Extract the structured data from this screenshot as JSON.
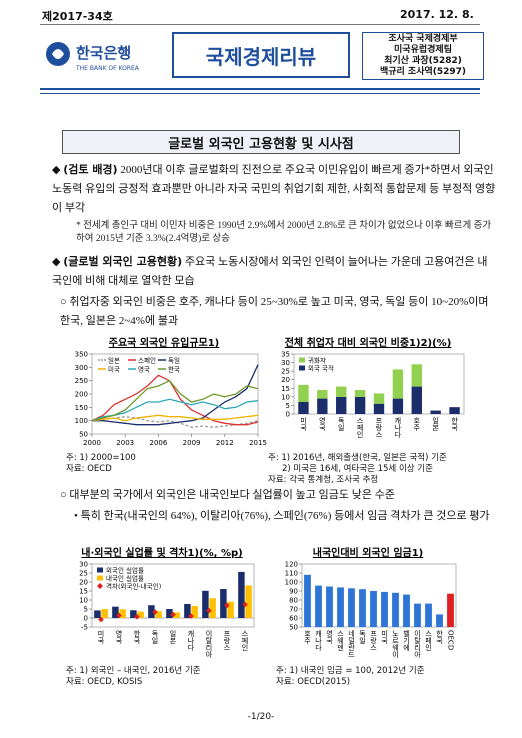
{
  "header": {
    "issue": "제2017-34호",
    "date": "2017. 12. 8.",
    "logo_name": "한국은행",
    "logo_en": "THE BANK OF KOREA",
    "series_title": "국제경제리뷰",
    "authors": [
      "조사국 국제경제부",
      "미국유럽경제팀",
      "최기산 과장(5282)",
      "백규리 조사역(5297)"
    ]
  },
  "title": "글로벌 외국인 고용현황 및 시사점",
  "body": [
    {
      "marker": "◆",
      "lead": "(검토 배경)",
      "text": "2000년대 이후 글로벌화의 진전으로 주요국 이민유입이 빠르게 증가*하면서 외국인 노동력 유입의 긍정적 효과뿐만 아니라 자국 국민의 취업기회 제한, 사회적 통합문제 등 부정적 영향이 부각"
    },
    {
      "marker": "*",
      "text": "전세계 총인구 대비 이민자 비중은 1990년 2.9%에서 2000년 2.8%로 큰 차이가 없었으나 이후 빠르게 증가하여 2015년 기준 3.3%(2.4억명)로 상승"
    },
    {
      "marker": "◆",
      "lead": "(글로벌 외국인 고용현황)",
      "text": "주요국 노동시장에서 외국인 인력이 늘어나는 가운데 고용여건은 내국인에 비해 대체로 열악한 모습"
    },
    {
      "marker": "○",
      "text": "취업자중 외국인 비중은 호주, 캐나다 등이 25~30%로 높고 미국, 영국, 독일 등이 10~20%이며 한국, 일본은 2~4%에 불과"
    },
    {
      "marker": "○",
      "text": "대부분의 국가에서 외국인은 내국인보다 실업률이 높고 임금도 낮은 수준"
    },
    {
      "marker": "•",
      "text": "특히 한국(내국인의 64%), 이탈리아(76%), 스페인(76%) 등에서 임금 격차가 큰 것으로 평가"
    }
  ],
  "chart_data": [
    {
      "type": "line",
      "title": "주요국 외국인 유입규모1)",
      "x": [
        2000,
        2001,
        2002,
        2003,
        2004,
        2005,
        2006,
        2007,
        2008,
        2009,
        2010,
        2011,
        2012,
        2013,
        2014,
        2015
      ],
      "xlim": [
        2000,
        2015
      ],
      "xticks": [
        2000,
        2003,
        2006,
        2009,
        2012,
        2015
      ],
      "ylim": [
        50,
        350
      ],
      "yticks": [
        50,
        100,
        150,
        200,
        250,
        300,
        350
      ],
      "series": [
        {
          "name": "일본",
          "color": "#9a9a9a",
          "dashed": true,
          "values": [
            100,
            105,
            110,
            115,
            110,
            100,
            95,
            100,
            90,
            75,
            80,
            75,
            80,
            85,
            90,
            100
          ]
        },
        {
          "name": "스페인",
          "color": "#e03030",
          "values": [
            100,
            120,
            160,
            180,
            200,
            230,
            270,
            250,
            180,
            140,
            120,
            100,
            90,
            85,
            85,
            95
          ]
        },
        {
          "name": "독일",
          "color": "#1b2d6b",
          "values": [
            100,
            100,
            95,
            90,
            85,
            85,
            85,
            90,
            95,
            100,
            110,
            140,
            170,
            190,
            220,
            310
          ]
        },
        {
          "name": "미국",
          "color": "#f2b300",
          "values": [
            100,
            105,
            110,
            100,
            110,
            115,
            120,
            115,
            115,
            110,
            105,
            105,
            105,
            110,
            115,
            120
          ]
        },
        {
          "name": "영국",
          "color": "#2aa7b8",
          "values": [
            100,
            115,
            120,
            130,
            150,
            170,
            170,
            180,
            170,
            160,
            170,
            160,
            145,
            150,
            170,
            175
          ]
        },
        {
          "name": "한국",
          "color": "#6a9a2a",
          "values": [
            100,
            110,
            120,
            140,
            180,
            220,
            230,
            250,
            200,
            170,
            180,
            200,
            190,
            200,
            230,
            220
          ]
        }
      ],
      "notes": [
        "주: 1) 2000=100",
        "자료: OECD"
      ]
    },
    {
      "type": "bar",
      "stacked": true,
      "title": "전체 취업자 대비 외국인 비중1)2)(%)",
      "categories": [
        "미국",
        "영국",
        "독일",
        "스페인",
        "프랑스",
        "캐나다",
        "호주",
        "일본",
        "한국"
      ],
      "ylim": [
        0,
        35
      ],
      "yticks": [
        0,
        5,
        10,
        15,
        20,
        25,
        30,
        35
      ],
      "series": [
        {
          "name": "귀화자",
          "color": "#92d050",
          "values": [
            10,
            5,
            6,
            4,
            6,
            17,
            13,
            null,
            null
          ]
        },
        {
          "name": "외국 국적",
          "color": "#1b2d6b",
          "values": [
            7,
            9,
            10,
            10,
            6,
            9,
            16,
            2,
            4
          ]
        }
      ],
      "notes": [
        "주: 1) 2016년, 해외출생(한국, 일본은 국적) 기준",
        "2) 미국은 16세, 여타국은 15세 이상 기준",
        "자료: 각국 통계청, 조사국 추정"
      ]
    },
    {
      "type": "bar",
      "title": "내·외국인 실업률 및 격차1)(%, %p)",
      "categories": [
        "미국",
        "영국",
        "한국",
        "독일",
        "일본",
        "캐나다",
        "이탈리아",
        "프랑스",
        "스페인"
      ],
      "ylim": [
        -5,
        30
      ],
      "yticks": [
        -5,
        0,
        5,
        10,
        15,
        20,
        25,
        30
      ],
      "series": [
        {
          "name": "외국인 실업률",
          "color": "#1b2d6b",
          "values": [
            4.2,
            6.3,
            4.3,
            7.1,
            5.0,
            7.8,
            15.1,
            16.1,
            25.6
          ]
        },
        {
          "name": "내국인 실업률",
          "color": "#ffc000",
          "values": [
            5.0,
            4.9,
            3.6,
            3.8,
            3.1,
            6.7,
            11.0,
            9.1,
            18.1
          ]
        },
        {
          "name": "격차(외국인-내국인)",
          "type": "scatter",
          "color": "#e02020",
          "values": [
            -0.8,
            1.4,
            0.7,
            3.3,
            1.9,
            1.1,
            4.1,
            7.0,
            7.5
          ]
        }
      ],
      "notes": [
        "주: 1) 외국인 – 내국인, 2016년 기준",
        "자료: OECD, KOSIS"
      ]
    },
    {
      "type": "bar",
      "title": "내국인대비 외국인 임금1)",
      "categories": [
        "호주",
        "캐나다",
        "영국",
        "스웨덴",
        "네덜란드",
        "독일",
        "프랑스",
        "미국",
        "노르웨이",
        "벨기에",
        "이탈리아",
        "스페인",
        "한국",
        "OECD"
      ],
      "values": [
        108,
        96,
        95,
        94,
        93,
        92,
        90,
        89,
        88,
        86,
        76,
        76,
        64,
        87
      ],
      "colors": [
        "#2e75d6",
        "#2e75d6",
        "#2e75d6",
        "#2e75d6",
        "#2e75d6",
        "#2e75d6",
        "#2e75d6",
        "#2e75d6",
        "#2e75d6",
        "#2e75d6",
        "#2e75d6",
        "#2e75d6",
        "#2e75d6",
        "#e02020"
      ],
      "ylim": [
        50,
        120
      ],
      "yticks": [
        50,
        60,
        70,
        80,
        90,
        100,
        110,
        120
      ],
      "notes": [
        "주: 1) 내국인 임금 = 100, 2012년 기준",
        "자료: OECD(2015)"
      ]
    }
  ],
  "footer": "-1/20-"
}
